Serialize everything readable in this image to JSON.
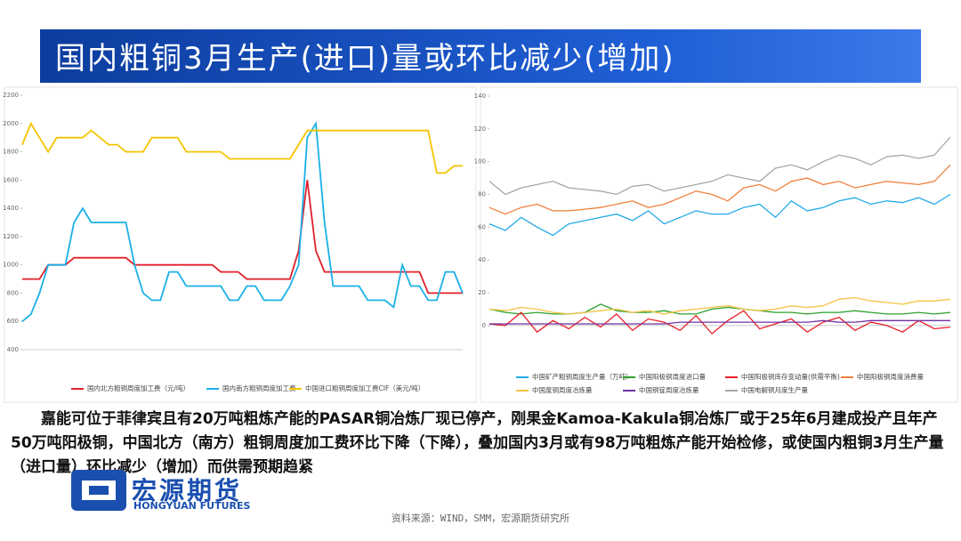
{
  "header": {
    "title": "国内粗铜3月生产(进口)量或环比减少(增加)"
  },
  "text": {
    "paragraph": "嘉能可位于菲律宾且有20万吨粗炼产能的PASAR铜冶炼厂现已停产，刚果金Kamoa-Kakula铜冶炼厂或于25年6月建成投产且年产50万吨阳极铜，中国北方（南方）粗铜周度加工费环比下降（下降），叠加国内3月或有98万吨粗炼产能开始检修，或使国内粗铜3月生产量（进口量）环比减少（增加）而供需预期趋紧",
    "logo_cn": "宏源期货",
    "logo_en": "HONGYUAN FUTURES",
    "source": "资料来源：WIND，SMM，宏源期货研究所"
  },
  "chart_data": [
    {
      "type": "line",
      "ylim": [
        400,
        2200
      ],
      "yticks": [
        400,
        600,
        800,
        1000,
        1200,
        1400,
        1600,
        1800,
        2000,
        2200
      ],
      "series": [
        {
          "name": "国内北方粗铜周度加工费（元/吨）",
          "color": "#e0202a",
          "values": [
            900,
            900,
            900,
            1000,
            1000,
            1000,
            1050,
            1050,
            1050,
            1050,
            1050,
            1050,
            1050,
            1000,
            1000,
            1000,
            1000,
            1000,
            1000,
            1000,
            1000,
            1000,
            1000,
            950,
            950,
            950,
            900,
            900,
            900,
            900,
            900,
            900,
            1100,
            1600,
            1100,
            950,
            950,
            950,
            950,
            950,
            950,
            950,
            950,
            950,
            950,
            950,
            950,
            800,
            800,
            800,
            800,
            800
          ]
        },
        {
          "name": "国内南方粗铜周度加工费",
          "color": "#1ab0e8",
          "values": [
            600,
            650,
            800,
            1000,
            1000,
            1000,
            1300,
            1400,
            1300,
            1300,
            1300,
            1300,
            1300,
            1000,
            800,
            750,
            750,
            950,
            950,
            850,
            850,
            850,
            850,
            850,
            750,
            750,
            850,
            850,
            750,
            750,
            750,
            850,
            1000,
            1900,
            2000,
            1300,
            850,
            850,
            850,
            850,
            750,
            750,
            750,
            700,
            1000,
            850,
            850,
            750,
            750,
            950,
            950,
            800
          ]
        },
        {
          "name": "中国进口粗铜周度加工费CIF（美元/吨）",
          "color": "#f5c400",
          "values": [
            1850,
            2000,
            1900,
            1800,
            1900,
            1900,
            1900,
            1900,
            1950,
            1900,
            1850,
            1850,
            1800,
            1800,
            1800,
            1900,
            1900,
            1900,
            1900,
            1800,
            1800,
            1800,
            1800,
            1800,
            1750,
            1750,
            1750,
            1750,
            1750,
            1750,
            1750,
            1750,
            1850,
            1950,
            1950,
            1950,
            1950,
            1950,
            1950,
            1950,
            1950,
            1950,
            1950,
            1950,
            1950,
            1950,
            1950,
            1950,
            1650,
            1650,
            1700,
            1700
          ]
        }
      ]
    },
    {
      "type": "line",
      "ylim": [
        -5,
        140
      ],
      "yticks": [
        0,
        20,
        40,
        60,
        80,
        100,
        120,
        140
      ],
      "series": [
        {
          "name": "中国矿产粗铜周度生产量（万吨）",
          "color": "#22aae6",
          "values": [
            62,
            58,
            66,
            60,
            55,
            62,
            64,
            66,
            68,
            64,
            70,
            62,
            66,
            70,
            68,
            68,
            72,
            74,
            66,
            76,
            70,
            72,
            76,
            78,
            74,
            76,
            75,
            78,
            74,
            80
          ]
        },
        {
          "name": "中国阳极铜周度进口量",
          "color": "#2ca02c",
          "values": [
            10,
            8,
            7,
            8,
            7,
            7,
            8,
            13,
            9,
            8,
            8,
            9,
            7,
            7,
            10,
            11,
            10,
            9,
            8,
            8,
            7,
            8,
            8,
            9,
            8,
            7,
            7,
            8,
            7,
            8
          ]
        },
        {
          "name": "中国阳极铜库存变动量(供需平衡)",
          "color": "#e8202a",
          "values": [
            1,
            0,
            8,
            -4,
            3,
            -2,
            5,
            -1,
            7,
            -3,
            4,
            2,
            -3,
            6,
            -5,
            3,
            9,
            -2,
            1,
            4,
            -4,
            2,
            5,
            -3,
            2,
            0,
            -4,
            3,
            -2,
            -1
          ]
        },
        {
          "name": "中国阳极铜周度消费量",
          "color": "#f07f3c",
          "values": [
            72,
            68,
            72,
            74,
            70,
            70,
            71,
            72,
            74,
            76,
            72,
            74,
            78,
            82,
            80,
            76,
            84,
            86,
            82,
            88,
            90,
            86,
            88,
            84,
            86,
            88,
            87,
            86,
            88,
            98
          ]
        },
        {
          "name": "中国废铜周度冶炼量",
          "color": "#f5c242",
          "values": [
            10,
            9,
            11,
            10,
            8,
            7,
            8,
            9,
            10,
            8,
            9,
            7,
            9,
            10,
            11,
            12,
            10,
            9,
            10,
            12,
            11,
            12,
            16,
            17,
            15,
            14,
            13,
            15,
            15,
            16
          ]
        },
        {
          "name": "中国铜锭周度冶炼量",
          "color": "#7030a0",
          "values": [
            1,
            1,
            1,
            1,
            1,
            1,
            1,
            1,
            1,
            1,
            1,
            1,
            2,
            2,
            2,
            2,
            2,
            2,
            2,
            2,
            2,
            3,
            2,
            2,
            3,
            3,
            3,
            3,
            3,
            3
          ]
        },
        {
          "name": "中国电解铜月度生产量",
          "color": "#a6a6a6",
          "values": [
            88,
            80,
            84,
            86,
            88,
            84,
            83,
            82,
            80,
            85,
            86,
            82,
            84,
            86,
            88,
            92,
            90,
            88,
            96,
            98,
            95,
            100,
            104,
            102,
            98,
            103,
            104,
            102,
            104,
            115
          ]
        }
      ]
    }
  ]
}
